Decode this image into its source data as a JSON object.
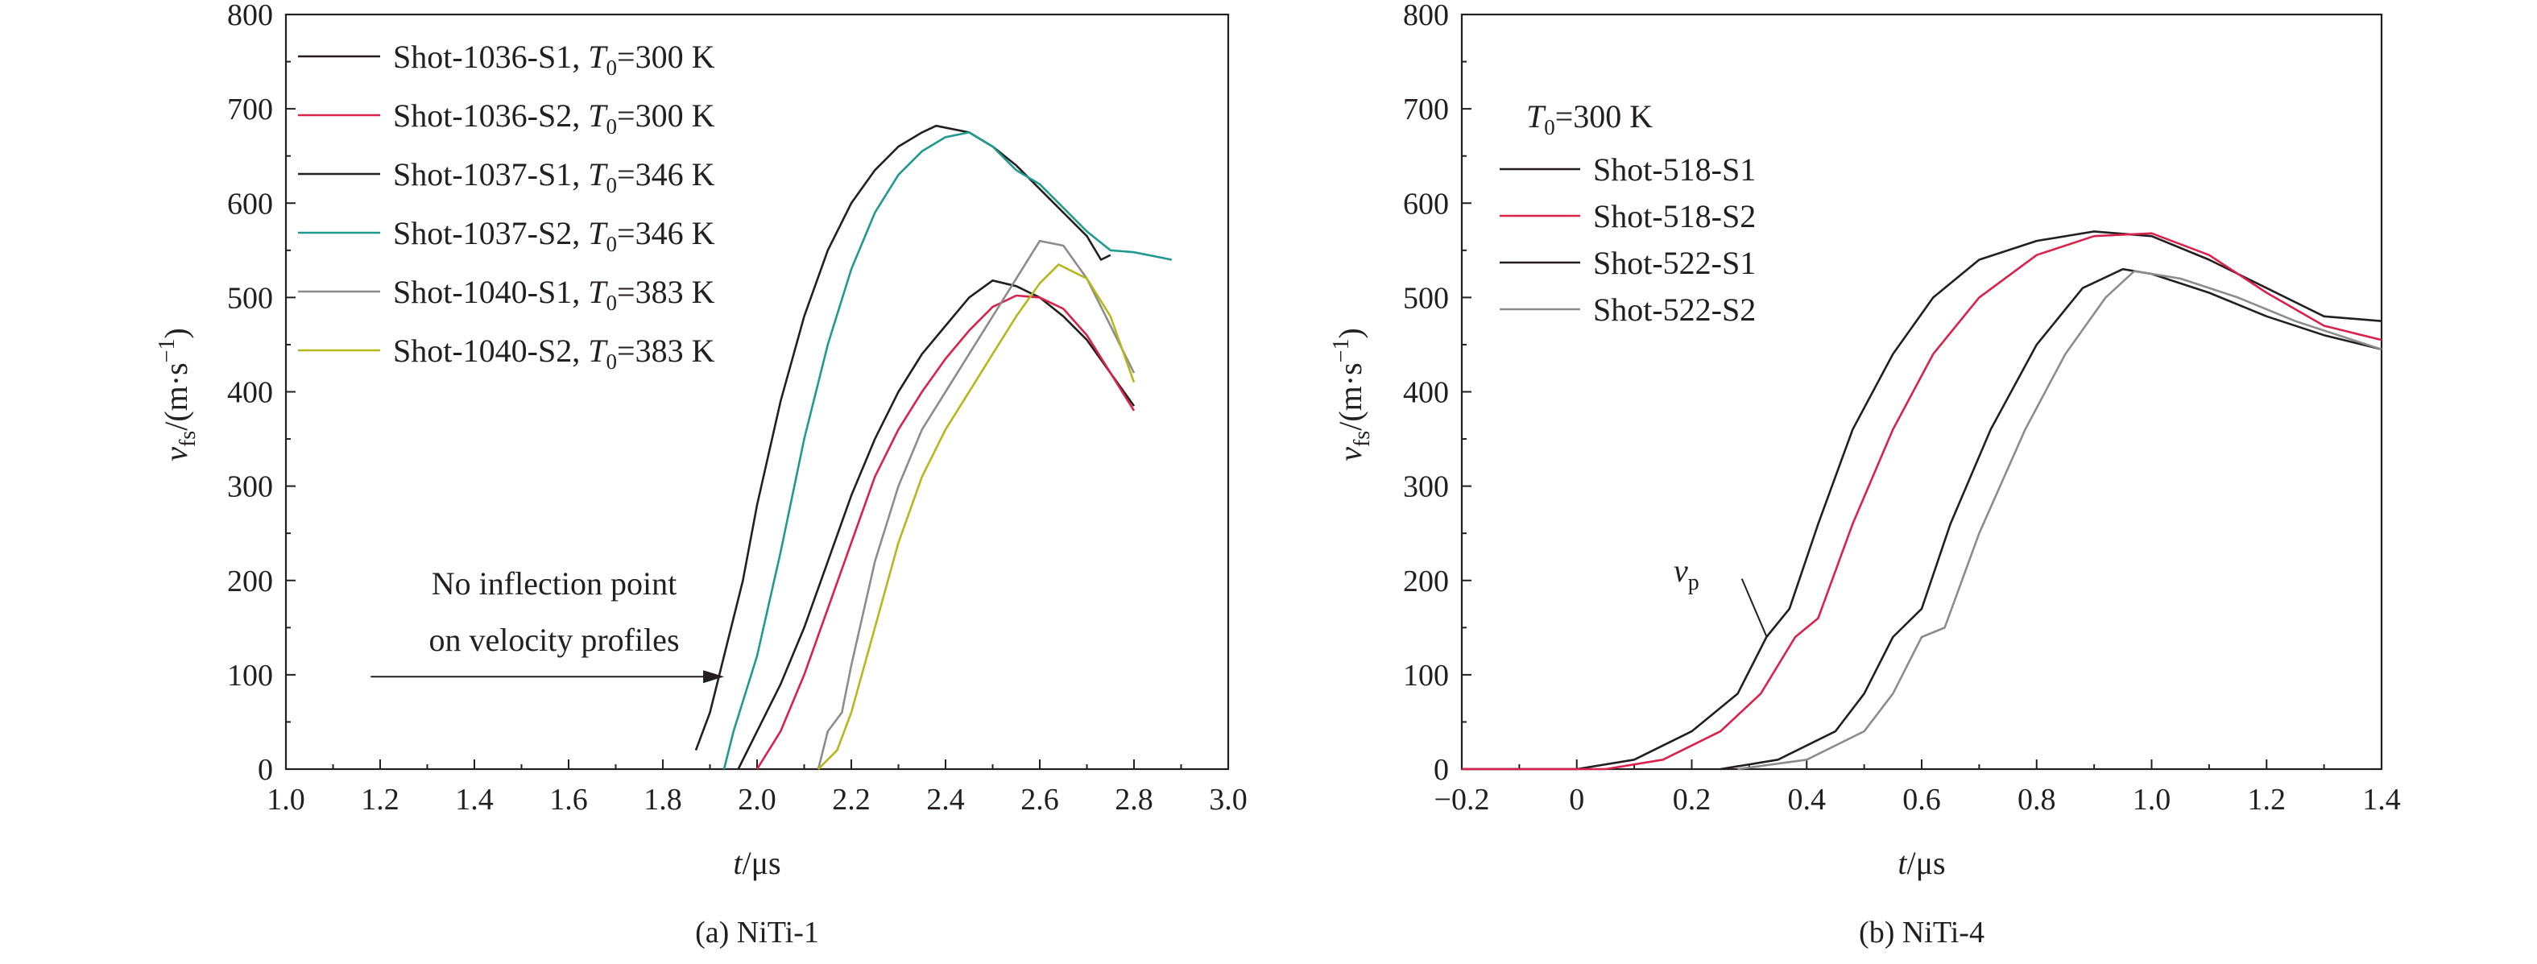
{
  "chart_data": [
    {
      "type": "line",
      "caption": "(a) NiTi-1",
      "xlabel": "t/μs",
      "xlabel_var": "t",
      "xlabel_unit": "/μs",
      "ylabel_var": "v",
      "ylabel_sub": "fs",
      "ylabel_unit": "/(m·s",
      "ylabel_exp": "−1",
      "ylabel_close": ")",
      "xlim": [
        1.0,
        3.0
      ],
      "ylim": [
        0,
        800
      ],
      "xticks": [
        "1.0",
        "1.2",
        "1.4",
        "1.6",
        "1.8",
        "2.0",
        "2.2",
        "2.4",
        "2.6",
        "2.8",
        "3.0"
      ],
      "yticks": [
        "0",
        "100",
        "200",
        "300",
        "400",
        "500",
        "600",
        "700",
        "800"
      ],
      "legend_position": "top-left",
      "annotation": {
        "lines": [
          "No inflection point",
          "on velocity profiles"
        ],
        "arrow_from": [
          1.18,
          98
        ],
        "arrow_to": [
          1.93,
          98
        ]
      },
      "series": [
        {
          "name": "Shot-1036-S1",
          "tlabel": "300 K",
          "color": "#231f20",
          "points": [
            [
              1.96,
              0
            ],
            [
              2.0,
              40
            ],
            [
              2.05,
              90
            ],
            [
              2.1,
              150
            ],
            [
              2.15,
              220
            ],
            [
              2.2,
              290
            ],
            [
              2.25,
              350
            ],
            [
              2.3,
              400
            ],
            [
              2.35,
              440
            ],
            [
              2.4,
              470
            ],
            [
              2.45,
              500
            ],
            [
              2.5,
              518
            ],
            [
              2.55,
              512
            ],
            [
              2.6,
              500
            ],
            [
              2.65,
              480
            ],
            [
              2.7,
              455
            ],
            [
              2.75,
              420
            ],
            [
              2.8,
              385
            ]
          ]
        },
        {
          "name": "Shot-1036-S2",
          "tlabel": "300 K",
          "color": "#d9224b",
          "points": [
            [
              2.0,
              0
            ],
            [
              2.05,
              40
            ],
            [
              2.1,
              100
            ],
            [
              2.15,
              170
            ],
            [
              2.2,
              240
            ],
            [
              2.25,
              310
            ],
            [
              2.3,
              360
            ],
            [
              2.35,
              400
            ],
            [
              2.4,
              435
            ],
            [
              2.45,
              465
            ],
            [
              2.5,
              490
            ],
            [
              2.55,
              502
            ],
            [
              2.6,
              500
            ],
            [
              2.65,
              488
            ],
            [
              2.7,
              460
            ],
            [
              2.75,
              420
            ],
            [
              2.8,
              380
            ]
          ]
        },
        {
          "name": "Shot-1037-S1",
          "tlabel": "346 K",
          "color": "#231f20",
          "points": [
            [
              1.87,
              20
            ],
            [
              1.9,
              60
            ],
            [
              1.93,
              120
            ],
            [
              1.97,
              200
            ],
            [
              2.0,
              280
            ],
            [
              2.05,
              390
            ],
            [
              2.1,
              480
            ],
            [
              2.15,
              550
            ],
            [
              2.2,
              600
            ],
            [
              2.25,
              635
            ],
            [
              2.3,
              660
            ],
            [
              2.35,
              675
            ],
            [
              2.38,
              682
            ],
            [
              2.45,
              675
            ],
            [
              2.5,
              660
            ],
            [
              2.55,
              640
            ],
            [
              2.6,
              615
            ],
            [
              2.65,
              590
            ],
            [
              2.7,
              565
            ],
            [
              2.73,
              540
            ],
            [
              2.75,
              545
            ]
          ]
        },
        {
          "name": "Shot-1037-S2",
          "tlabel": "346 K",
          "color": "#1f9a8e",
          "points": [
            [
              1.93,
              0
            ],
            [
              1.95,
              40
            ],
            [
              2.0,
              120
            ],
            [
              2.05,
              230
            ],
            [
              2.1,
              350
            ],
            [
              2.15,
              450
            ],
            [
              2.2,
              530
            ],
            [
              2.25,
              590
            ],
            [
              2.3,
              630
            ],
            [
              2.35,
              655
            ],
            [
              2.4,
              670
            ],
            [
              2.45,
              675
            ],
            [
              2.5,
              660
            ],
            [
              2.55,
              635
            ],
            [
              2.6,
              620
            ],
            [
              2.65,
              595
            ],
            [
              2.7,
              570
            ],
            [
              2.75,
              550
            ],
            [
              2.8,
              548
            ],
            [
              2.88,
              540
            ]
          ]
        },
        {
          "name": "Shot-1040-S1",
          "tlabel": "383 K",
          "color": "#8c8c8c",
          "points": [
            [
              2.13,
              0
            ],
            [
              2.15,
              40
            ],
            [
              2.18,
              60
            ],
            [
              2.2,
              110
            ],
            [
              2.25,
              220
            ],
            [
              2.3,
              300
            ],
            [
              2.35,
              360
            ],
            [
              2.4,
              400
            ],
            [
              2.45,
              440
            ],
            [
              2.5,
              480
            ],
            [
              2.55,
              520
            ],
            [
              2.6,
              560
            ],
            [
              2.65,
              555
            ],
            [
              2.7,
              520
            ],
            [
              2.75,
              470
            ],
            [
              2.8,
              420
            ]
          ]
        },
        {
          "name": "Shot-1040-S2",
          "tlabel": "383 K",
          "color": "#b5b81c",
          "points": [
            [
              2.13,
              0
            ],
            [
              2.17,
              20
            ],
            [
              2.2,
              60
            ],
            [
              2.25,
              150
            ],
            [
              2.3,
              240
            ],
            [
              2.35,
              310
            ],
            [
              2.4,
              360
            ],
            [
              2.45,
              400
            ],
            [
              2.5,
              440
            ],
            [
              2.55,
              480
            ],
            [
              2.6,
              515
            ],
            [
              2.64,
              535
            ],
            [
              2.7,
              520
            ],
            [
              2.75,
              480
            ],
            [
              2.8,
              410
            ]
          ]
        }
      ]
    },
    {
      "type": "line",
      "caption": "(b) NiTi-4",
      "xlabel": "t/μs",
      "xlabel_var": "t",
      "xlabel_unit": "/μs",
      "ylabel_var": "v",
      "ylabel_sub": "fs",
      "ylabel_unit": "/(m·s",
      "ylabel_exp": "−1",
      "ylabel_close": ")",
      "xlim": [
        -0.2,
        1.4
      ],
      "ylim": [
        0,
        800
      ],
      "xticks": [
        "−0.2",
        "0",
        "0.2",
        "0.4",
        "0.6",
        "0.8",
        "1.0",
        "1.2",
        "1.4"
      ],
      "yticks": [
        "0",
        "100",
        "200",
        "300",
        "400",
        "500",
        "600",
        "700",
        "800"
      ],
      "legend_position": "top-left",
      "legend_title_var": "T",
      "legend_title_sub": "0",
      "legend_title_val": "=300 K",
      "annotation": {
        "label_var": "v",
        "label_sub": "p",
        "leader_from": [
          0.29,
          195
        ],
        "leader_to": [
          0.33,
          145
        ]
      },
      "series": [
        {
          "name": "Shot-518-S1",
          "color": "#231f20",
          "points": [
            [
              -0.2,
              0
            ],
            [
              0,
              0
            ],
            [
              0.1,
              10
            ],
            [
              0.2,
              40
            ],
            [
              0.28,
              80
            ],
            [
              0.33,
              140
            ],
            [
              0.37,
              170
            ],
            [
              0.42,
              260
            ],
            [
              0.48,
              360
            ],
            [
              0.55,
              440
            ],
            [
              0.62,
              500
            ],
            [
              0.7,
              540
            ],
            [
              0.8,
              560
            ],
            [
              0.9,
              570
            ],
            [
              1.0,
              565
            ],
            [
              1.1,
              540
            ],
            [
              1.2,
              510
            ],
            [
              1.3,
              480
            ],
            [
              1.4,
              475
            ]
          ]
        },
        {
          "name": "Shot-518-S2",
          "color": "#d9224b",
          "points": [
            [
              -0.2,
              0
            ],
            [
              0.05,
              0
            ],
            [
              0.15,
              10
            ],
            [
              0.25,
              40
            ],
            [
              0.32,
              80
            ],
            [
              0.38,
              140
            ],
            [
              0.42,
              160
            ],
            [
              0.48,
              260
            ],
            [
              0.55,
              360
            ],
            [
              0.62,
              440
            ],
            [
              0.7,
              500
            ],
            [
              0.8,
              545
            ],
            [
              0.9,
              565
            ],
            [
              1.0,
              568
            ],
            [
              1.1,
              545
            ],
            [
              1.2,
              505
            ],
            [
              1.3,
              470
            ],
            [
              1.4,
              455
            ]
          ]
        },
        {
          "name": "Shot-522-S1",
          "color": "#231f20",
          "points": [
            [
              0.25,
              0
            ],
            [
              0.35,
              10
            ],
            [
              0.45,
              40
            ],
            [
              0.5,
              80
            ],
            [
              0.55,
              140
            ],
            [
              0.6,
              170
            ],
            [
              0.65,
              260
            ],
            [
              0.72,
              360
            ],
            [
              0.8,
              450
            ],
            [
              0.88,
              510
            ],
            [
              0.95,
              530
            ],
            [
              1.0,
              525
            ],
            [
              1.1,
              505
            ],
            [
              1.2,
              480
            ],
            [
              1.3,
              460
            ],
            [
              1.4,
              445
            ]
          ]
        },
        {
          "name": "Shot-522-S2",
          "color": "#8c8c8c",
          "points": [
            [
              0.28,
              0
            ],
            [
              0.4,
              10
            ],
            [
              0.5,
              40
            ],
            [
              0.55,
              80
            ],
            [
              0.6,
              140
            ],
            [
              0.64,
              150
            ],
            [
              0.7,
              250
            ],
            [
              0.78,
              360
            ],
            [
              0.85,
              440
            ],
            [
              0.92,
              500
            ],
            [
              0.97,
              528
            ],
            [
              1.05,
              520
            ],
            [
              1.15,
              500
            ],
            [
              1.25,
              475
            ],
            [
              1.4,
              445
            ]
          ]
        }
      ]
    }
  ]
}
